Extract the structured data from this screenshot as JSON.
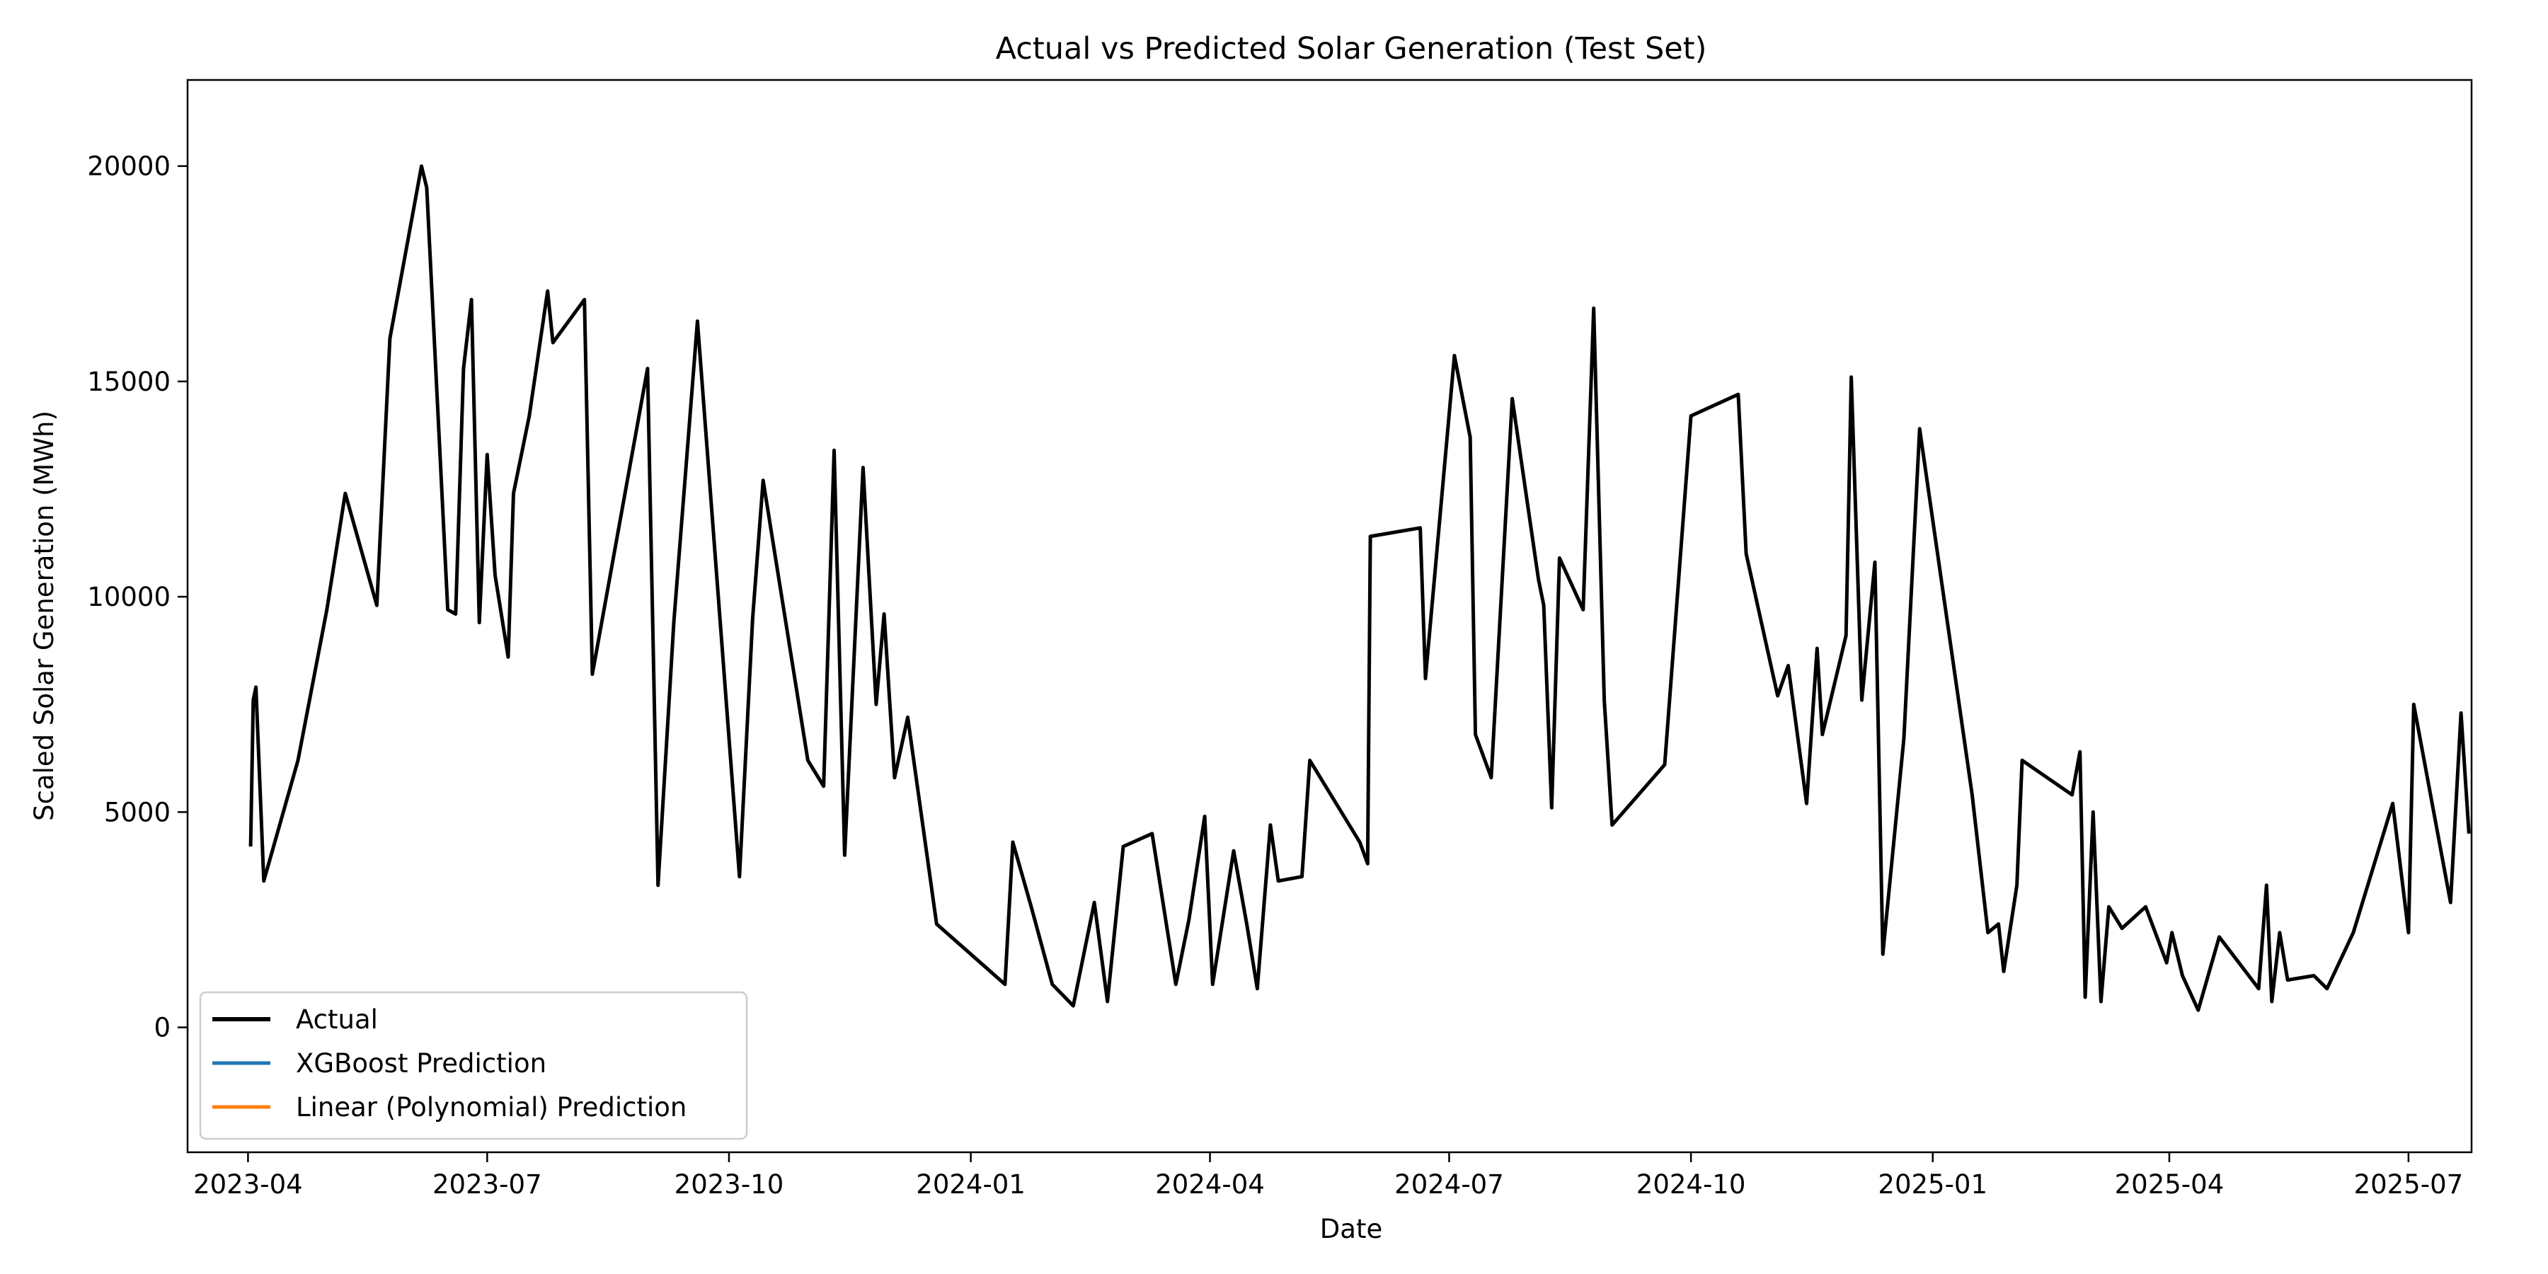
{
  "chart_data": {
    "type": "line",
    "title": "Actual vs Predicted Solar Generation (Test Set)",
    "xlabel": "Date",
    "ylabel": "Scaled Solar Generation (MWh)",
    "x_tick_labels": [
      "2023-04",
      "2023-07",
      "2023-10",
      "2024-01",
      "2024-04",
      "2024-07",
      "2024-10",
      "2025-01",
      "2025-04",
      "2025-07"
    ],
    "x_tick_dates": [
      "2023-04-01",
      "2023-07-01",
      "2023-10-01",
      "2024-01-01",
      "2024-04-01",
      "2024-07-01",
      "2024-10-01",
      "2025-01-01",
      "2025-04-01",
      "2025-07-01"
    ],
    "y_ticks": [
      0,
      5000,
      10000,
      15000,
      20000
    ],
    "y_tick_labels": [
      "0",
      "5000",
      "10000",
      "15000",
      "20000"
    ],
    "xlim": [
      "2023-03-09",
      "2025-07-25"
    ],
    "ylim": [
      -2900,
      22000
    ],
    "grid": false,
    "legend_position": "lower-left",
    "series": [
      {
        "name": "Actual",
        "color": "#000000",
        "width": 5,
        "points": [
          [
            "2023-04-02",
            4200
          ],
          [
            "2023-04-03",
            7600
          ],
          [
            "2023-04-04",
            7900
          ],
          [
            "2023-04-07",
            3400
          ],
          [
            "2023-04-20",
            6200
          ],
          [
            "2023-05-01",
            9700
          ],
          [
            "2023-05-08",
            12400
          ],
          [
            "2023-05-20",
            9800
          ],
          [
            "2023-05-25",
            16000
          ],
          [
            "2023-06-06",
            20000
          ],
          [
            "2023-06-08",
            19500
          ],
          [
            "2023-06-16",
            9700
          ],
          [
            "2023-06-19",
            9600
          ],
          [
            "2023-06-22",
            15300
          ],
          [
            "2023-06-25",
            16900
          ],
          [
            "2023-06-28",
            9400
          ],
          [
            "2023-07-01",
            13300
          ],
          [
            "2023-07-04",
            10500
          ],
          [
            "2023-07-09",
            8600
          ],
          [
            "2023-07-11",
            12400
          ],
          [
            "2023-07-17",
            14200
          ],
          [
            "2023-07-24",
            17100
          ],
          [
            "2023-07-26",
            15900
          ],
          [
            "2023-08-07",
            16900
          ],
          [
            "2023-08-10",
            8200
          ],
          [
            "2023-08-31",
            15300
          ],
          [
            "2023-09-04",
            3300
          ],
          [
            "2023-09-10",
            9400
          ],
          [
            "2023-09-19",
            16400
          ],
          [
            "2023-10-05",
            3500
          ],
          [
            "2023-10-10",
            9500
          ],
          [
            "2023-10-14",
            12700
          ],
          [
            "2023-10-31",
            6200
          ],
          [
            "2023-11-06",
            5600
          ],
          [
            "2023-11-10",
            13400
          ],
          [
            "2023-11-14",
            4000
          ],
          [
            "2023-11-21",
            13000
          ],
          [
            "2023-11-26",
            7500
          ],
          [
            "2023-11-29",
            9600
          ],
          [
            "2023-12-03",
            5800
          ],
          [
            "2023-12-08",
            7200
          ],
          [
            "2023-12-19",
            2400
          ],
          [
            "2024-01-14",
            1000
          ],
          [
            "2024-01-17",
            4300
          ],
          [
            "2024-01-24",
            2800
          ],
          [
            "2024-02-01",
            1000
          ],
          [
            "2024-02-09",
            500
          ],
          [
            "2024-02-17",
            2900
          ],
          [
            "2024-02-22",
            600
          ],
          [
            "2024-02-28",
            4200
          ],
          [
            "2024-03-10",
            4500
          ],
          [
            "2024-03-19",
            1000
          ],
          [
            "2024-03-24",
            2500
          ],
          [
            "2024-03-30",
            4900
          ],
          [
            "2024-04-02",
            1000
          ],
          [
            "2024-04-10",
            4100
          ],
          [
            "2024-04-15",
            2400
          ],
          [
            "2024-04-19",
            900
          ],
          [
            "2024-04-24",
            4700
          ],
          [
            "2024-04-27",
            3400
          ],
          [
            "2024-05-06",
            3500
          ],
          [
            "2024-05-09",
            6200
          ],
          [
            "2024-05-28",
            4300
          ],
          [
            "2024-05-31",
            3800
          ],
          [
            "2024-06-01",
            11400
          ],
          [
            "2024-06-20",
            11600
          ],
          [
            "2024-06-22",
            8100
          ],
          [
            "2024-07-03",
            15600
          ],
          [
            "2024-07-09",
            13700
          ],
          [
            "2024-07-11",
            6800
          ],
          [
            "2024-07-17",
            5800
          ],
          [
            "2024-07-25",
            14600
          ],
          [
            "2024-08-04",
            10400
          ],
          [
            "2024-08-06",
            9800
          ],
          [
            "2024-08-09",
            5100
          ],
          [
            "2024-08-12",
            10900
          ],
          [
            "2024-08-21",
            9700
          ],
          [
            "2024-08-25",
            16700
          ],
          [
            "2024-08-29",
            7600
          ],
          [
            "2024-09-01",
            4700
          ],
          [
            "2024-09-21",
            6100
          ],
          [
            "2024-10-01",
            14200
          ],
          [
            "2024-10-19",
            14700
          ],
          [
            "2024-10-22",
            11000
          ],
          [
            "2024-11-03",
            7700
          ],
          [
            "2024-11-07",
            8400
          ],
          [
            "2024-11-14",
            5200
          ],
          [
            "2024-11-18",
            8800
          ],
          [
            "2024-11-20",
            6800
          ],
          [
            "2024-11-29",
            9100
          ],
          [
            "2024-12-01",
            15100
          ],
          [
            "2024-12-05",
            7600
          ],
          [
            "2024-12-10",
            10800
          ],
          [
            "2024-12-13",
            1700
          ],
          [
            "2024-12-21",
            6700
          ],
          [
            "2024-12-27",
            13900
          ],
          [
            "2025-01-16",
            5400
          ],
          [
            "2025-01-22",
            2200
          ],
          [
            "2025-01-26",
            2400
          ],
          [
            "2025-01-28",
            1300
          ],
          [
            "2025-02-02",
            3300
          ],
          [
            "2025-02-04",
            6200
          ],
          [
            "2025-02-23",
            5400
          ],
          [
            "2025-02-26",
            6400
          ],
          [
            "2025-02-28",
            700
          ],
          [
            "2025-03-03",
            5000
          ],
          [
            "2025-03-06",
            600
          ],
          [
            "2025-03-09",
            2800
          ],
          [
            "2025-03-14",
            2300
          ],
          [
            "2025-03-23",
            2800
          ],
          [
            "2025-03-31",
            1500
          ],
          [
            "2025-04-02",
            2200
          ],
          [
            "2025-04-06",
            1200
          ],
          [
            "2025-04-12",
            400
          ],
          [
            "2025-04-20",
            2100
          ],
          [
            "2025-05-05",
            900
          ],
          [
            "2025-05-08",
            3300
          ],
          [
            "2025-05-10",
            600
          ],
          [
            "2025-05-13",
            2200
          ],
          [
            "2025-05-16",
            1100
          ],
          [
            "2025-05-26",
            1200
          ],
          [
            "2025-05-31",
            900
          ],
          [
            "2025-06-10",
            2200
          ],
          [
            "2025-06-25",
            5200
          ],
          [
            "2025-07-01",
            2200
          ],
          [
            "2025-07-03",
            7500
          ],
          [
            "2025-07-17",
            2900
          ],
          [
            "2025-07-21",
            7300
          ],
          [
            "2025-07-24",
            4500
          ]
        ]
      },
      {
        "name": "XGBoost Prediction",
        "color": "#1f77b4",
        "width": 4,
        "points": []
      },
      {
        "name": "Linear (Polynomial) Prediction",
        "color": "#ff7f0e",
        "width": 4,
        "points": []
      }
    ]
  }
}
